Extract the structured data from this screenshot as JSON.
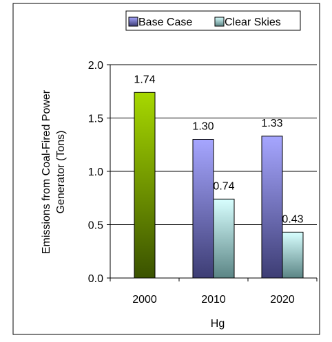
{
  "chart_data": {
    "type": "bar",
    "categories": [
      "2000",
      "2010",
      "2020"
    ],
    "series": [
      {
        "name": "2000",
        "values": [
          1.74,
          null,
          null
        ]
      },
      {
        "name": "Base Case",
        "values": [
          null,
          1.3,
          1.33
        ]
      },
      {
        "name": "Clear Skies",
        "values": [
          null,
          0.74,
          0.43
        ]
      }
    ],
    "value_labels": [
      [
        "1.74",
        "",
        ""
      ],
      [
        "",
        "1.30",
        "1.33"
      ],
      [
        "",
        "0.74",
        "0.43"
      ]
    ],
    "legend": [
      "Base Case",
      "Clear Skies"
    ],
    "xlabel": "Hg",
    "ylabel_lines": [
      "Emissions from Coal-Fired Power",
      "Generator (Tons)"
    ],
    "ylim": [
      0,
      2.0
    ],
    "yticks": [
      "0.0",
      "0.5",
      "1.0",
      "1.5",
      "2.0"
    ],
    "grid": true,
    "legend_position": "top",
    "colors": {
      "base_case": "#9999ff",
      "clear_skies": "#ccffff",
      "year_2000": "#99cc00",
      "gridline": "#000000"
    }
  }
}
